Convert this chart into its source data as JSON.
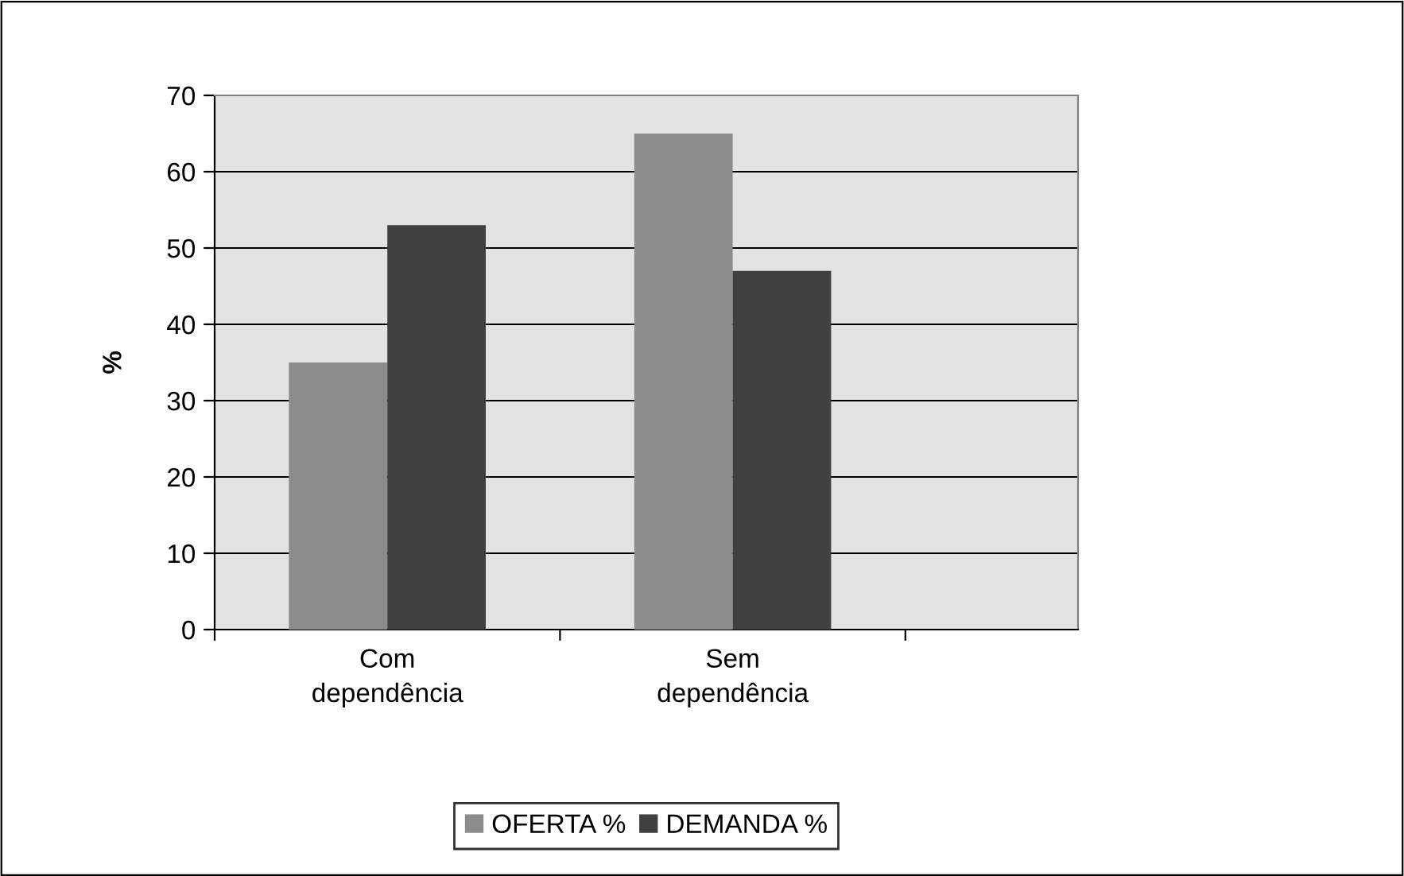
{
  "chart_data": {
    "type": "bar",
    "ylabel": "%",
    "categories": [
      "Com dependência",
      "Sem dependência"
    ],
    "series": [
      {
        "name": "OFERTA %",
        "color": "#8c8c8c",
        "values": [
          35,
          65
        ]
      },
      {
        "name": "DEMANDA %",
        "color": "#404040",
        "values": [
          53,
          47
        ]
      }
    ],
    "ylim": [
      0,
      70
    ],
    "yticks": [
      0,
      10,
      20,
      30,
      40,
      50,
      60,
      70
    ],
    "grid": "y",
    "legend": "bottom"
  }
}
